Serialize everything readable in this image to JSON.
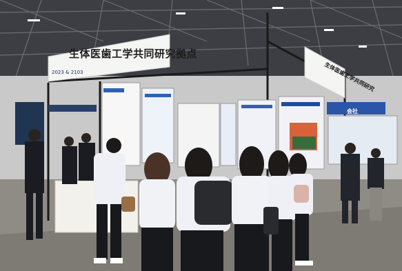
{
  "scene": {
    "description_icon": "exhibition-hall-photo-icon",
    "colors": {
      "ceiling": "#3a3c40",
      "floor": "#8d8a84",
      "sign_board": "#f4f4f2",
      "uniform_white": "#f2f3f6",
      "suit_dark": "#1b1c22"
    }
  },
  "signs": {
    "main_title": "生体医歯工学共同研究拠点",
    "booth_number": "2023 & 2103",
    "side_title": "生体医歯工学共同研究",
    "right_booth": "会社"
  }
}
